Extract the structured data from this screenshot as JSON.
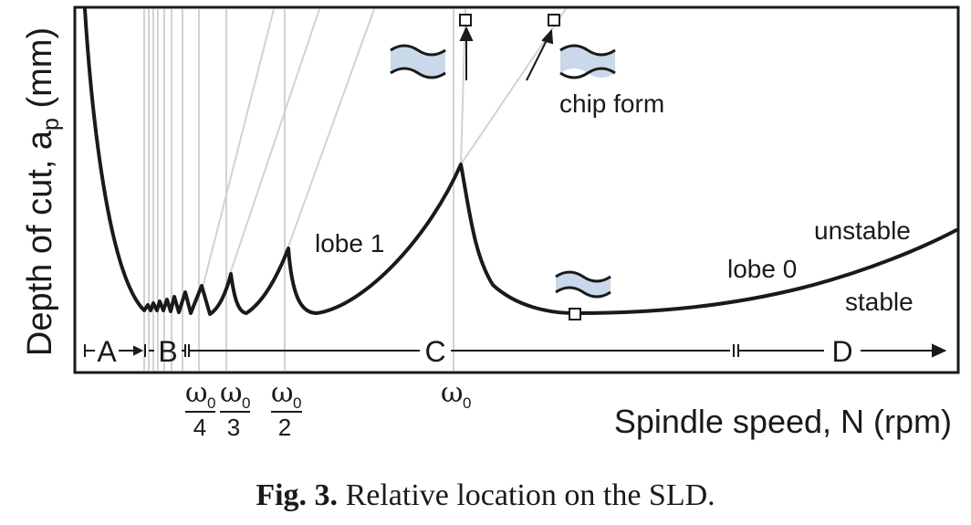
{
  "axes": {
    "ylabel": "Depth of cut, a",
    "ylabel_sub": "p",
    "ylabel_unit": " (mm)",
    "xlabel": "Spindle speed, N (rpm)"
  },
  "annotations": {
    "lobe1": "lobe 1",
    "lobe0": "lobe 0",
    "unstable": "unstable",
    "stable": "stable",
    "chip_form": "chip form"
  },
  "regions": [
    "A",
    "B",
    "C",
    "D"
  ],
  "frequency_markers": [
    {
      "symbol": "ω",
      "subscript": "0",
      "denominator": "4"
    },
    {
      "symbol": "ω",
      "subscript": "0",
      "denominator": "3"
    },
    {
      "symbol": "ω",
      "subscript": "0",
      "denominator": "2"
    },
    {
      "symbol": "ω",
      "subscript": "0",
      "denominator": ""
    }
  ],
  "caption": {
    "label": "Fig. 3.",
    "text": " Relative location on the SLD."
  },
  "colors": {
    "curve": "#1a1a1a",
    "guide_lines": "#d2d2d2",
    "chip_fill": "#c9d9ea"
  }
}
